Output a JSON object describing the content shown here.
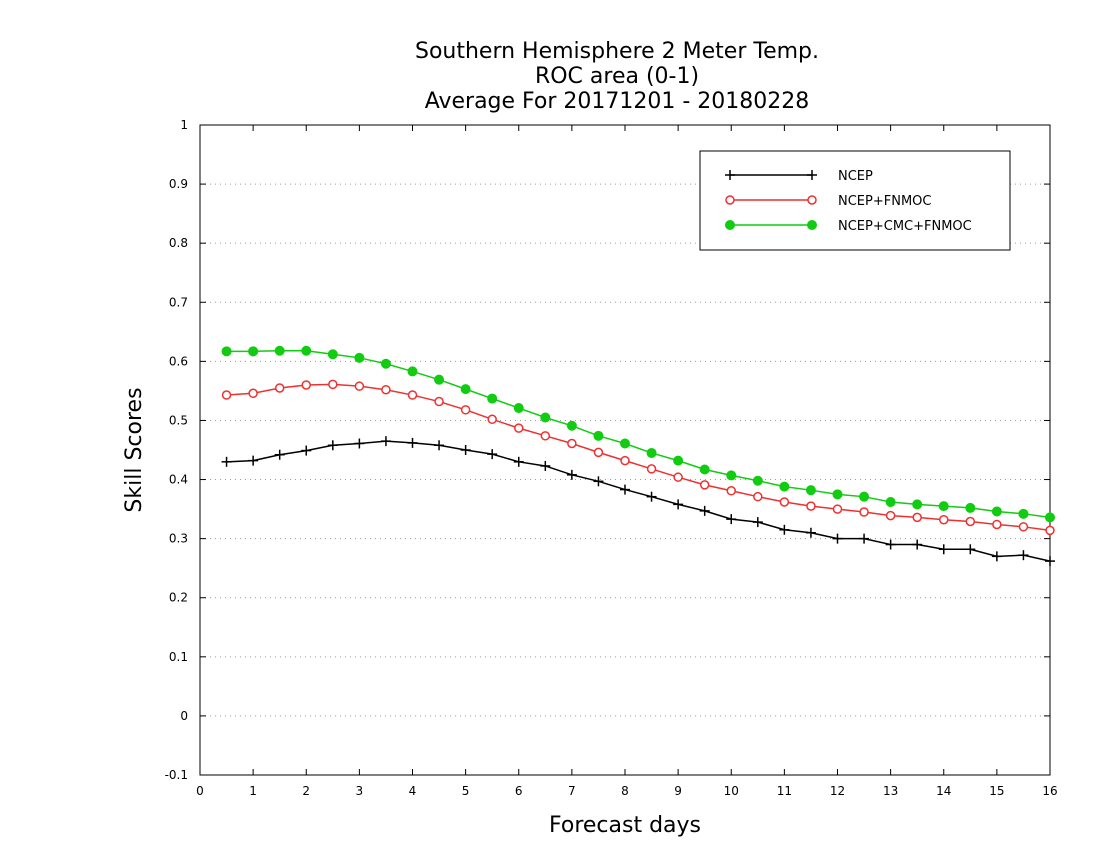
{
  "chart_data": {
    "type": "line",
    "title_lines": [
      "Southern Hemisphere 2 Meter Temp.",
      "ROC area (0-1)",
      "Average For 20171201 - 20180228"
    ],
    "xlabel": "Forecast days",
    "ylabel": "Skill Scores",
    "xlim": [
      0,
      16
    ],
    "ylim": [
      -0.1,
      1
    ],
    "x_ticks": [
      0,
      1,
      2,
      3,
      4,
      5,
      6,
      7,
      8,
      9,
      10,
      11,
      12,
      13,
      14,
      15,
      16
    ],
    "x_tick_labels": [
      "0",
      "1",
      "2",
      "3",
      "4",
      "5",
      "6",
      "7",
      "8",
      "9",
      "10",
      "11",
      "12",
      "13",
      "14",
      "15",
      "16"
    ],
    "y_ticks": [
      -0.1,
      0,
      0.1,
      0.2,
      0.3,
      0.4,
      0.5,
      0.6,
      0.7,
      0.8,
      0.9,
      1
    ],
    "y_tick_labels": [
      "-0.1",
      "0",
      "0.1",
      "0.2",
      "0.3",
      "0.4",
      "0.5",
      "0.6",
      "0.7",
      "0.8",
      "0.9",
      "1"
    ],
    "grid": "horizontal dotted",
    "legend_position": "top-right",
    "x": [
      0.5,
      1,
      1.5,
      2,
      2.5,
      3,
      3.5,
      4,
      4.5,
      5,
      5.5,
      6,
      6.5,
      7,
      7.5,
      8,
      8.5,
      9,
      9.5,
      10,
      10.5,
      11,
      11.5,
      12,
      12.5,
      13,
      13.5,
      14,
      14.5,
      15,
      15.5,
      16
    ],
    "series": [
      {
        "name": "NCEP",
        "color": "#000000",
        "marker": "plus",
        "values": [
          0.43,
          0.432,
          0.442,
          0.449,
          0.458,
          0.461,
          0.465,
          0.462,
          0.458,
          0.45,
          0.443,
          0.43,
          0.423,
          0.408,
          0.397,
          0.383,
          0.371,
          0.358,
          0.347,
          0.333,
          0.328,
          0.315,
          0.31,
          0.3,
          0.3,
          0.29,
          0.29,
          0.282,
          0.282,
          0.27,
          0.272,
          0.262
        ]
      },
      {
        "name": "NCEP+FNMOC",
        "color": "#ee3030",
        "marker": "open-circle",
        "values": [
          0.543,
          0.546,
          0.555,
          0.56,
          0.561,
          0.558,
          0.552,
          0.543,
          0.532,
          0.518,
          0.502,
          0.487,
          0.474,
          0.461,
          0.446,
          0.432,
          0.418,
          0.404,
          0.391,
          0.381,
          0.371,
          0.362,
          0.355,
          0.35,
          0.345,
          0.339,
          0.336,
          0.332,
          0.329,
          0.324,
          0.32,
          0.314
        ]
      },
      {
        "name": "NCEP+CMC+FNMOC",
        "color": "#11cc11",
        "marker": "filled-circle",
        "values": [
          0.617,
          0.617,
          0.618,
          0.618,
          0.612,
          0.606,
          0.596,
          0.583,
          0.569,
          0.553,
          0.537,
          0.521,
          0.505,
          0.491,
          0.474,
          0.461,
          0.445,
          0.432,
          0.417,
          0.407,
          0.398,
          0.388,
          0.382,
          0.375,
          0.371,
          0.362,
          0.358,
          0.355,
          0.352,
          0.346,
          0.342,
          0.336
        ]
      }
    ]
  }
}
